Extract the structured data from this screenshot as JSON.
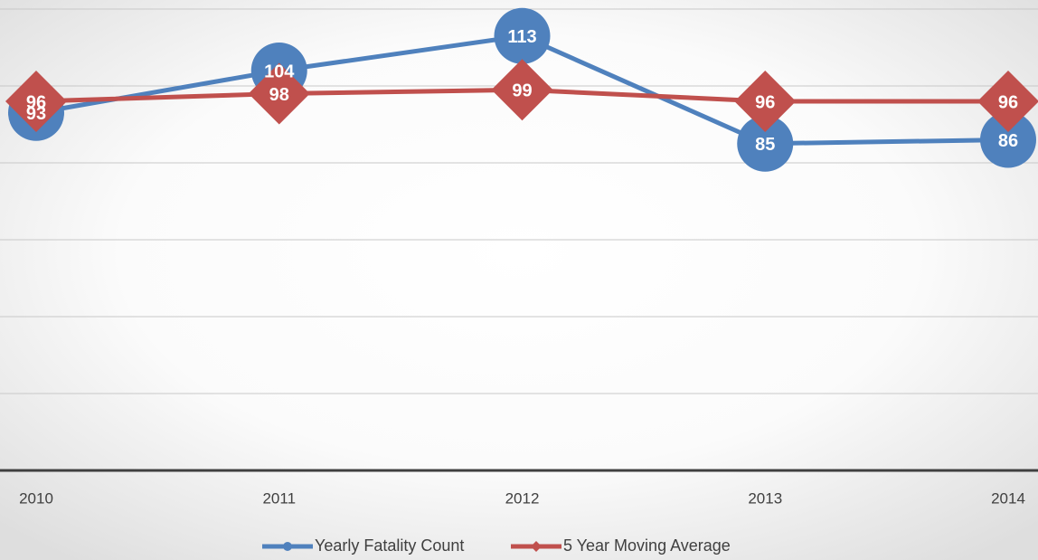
{
  "chart_data": {
    "type": "line",
    "categories": [
      "2010",
      "2011",
      "2012",
      "2013",
      "2014"
    ],
    "series": [
      {
        "name": "Yearly Fatality Count",
        "color": "#4f81bd",
        "values": [
          93,
          104,
          113,
          85,
          86
        ]
      },
      {
        "name": "5 Year Moving Average",
        "color": "#c0504d",
        "values": [
          96,
          98,
          99,
          96,
          96
        ]
      }
    ],
    "ylim": [
      0,
      120
    ],
    "yticks": [
      0,
      20,
      40,
      60,
      80,
      100,
      120
    ],
    "grid": true,
    "legend": "bottom"
  }
}
